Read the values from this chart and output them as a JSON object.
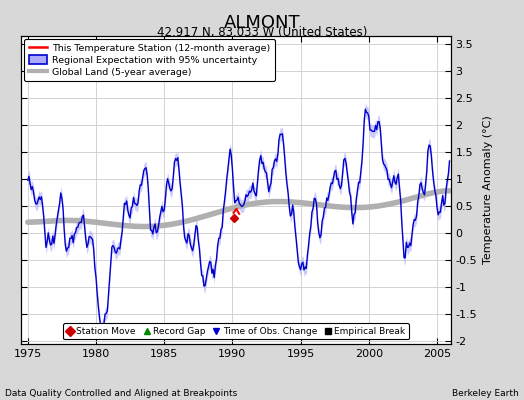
{
  "title": "ALMONT",
  "subtitle": "42.917 N, 83.033 W (United States)",
  "xlabel_note": "Data Quality Controlled and Aligned at Breakpoints",
  "credit": "Berkeley Earth",
  "ylabel": "Temperature Anomaly (°C)",
  "xlim": [
    1974.5,
    2006.0
  ],
  "ylim": [
    -2.05,
    3.65
  ],
  "yticks": [
    -2,
    -1.5,
    -1,
    -0.5,
    0,
    0.5,
    1,
    1.5,
    2,
    2.5,
    3,
    3.5
  ],
  "xticks": [
    1975,
    1980,
    1985,
    1990,
    1995,
    2000,
    2005
  ],
  "bg_color": "#d8d8d8",
  "plot_bg_color": "#ffffff",
  "uncertainty_color": "#aaaaff",
  "regional_color": "#0000cc",
  "station_color": "#ff0000",
  "global_color": "#b0b0b0",
  "global_lw": 4,
  "regional_lw": 1.0,
  "station_lw": 1.5,
  "legend_items": [
    "This Temperature Station (12-month average)",
    "Regional Expectation with 95% uncertainty",
    "Global Land (5-year average)"
  ],
  "marker_legend": [
    {
      "label": "Station Move",
      "color": "#cc0000",
      "marker": "D"
    },
    {
      "label": "Record Gap",
      "color": "#008800",
      "marker": "^"
    },
    {
      "label": "Time of Obs. Change",
      "color": "#0000cc",
      "marker": "v"
    },
    {
      "label": "Empirical Break",
      "color": "#000000",
      "marker": "s"
    }
  ]
}
